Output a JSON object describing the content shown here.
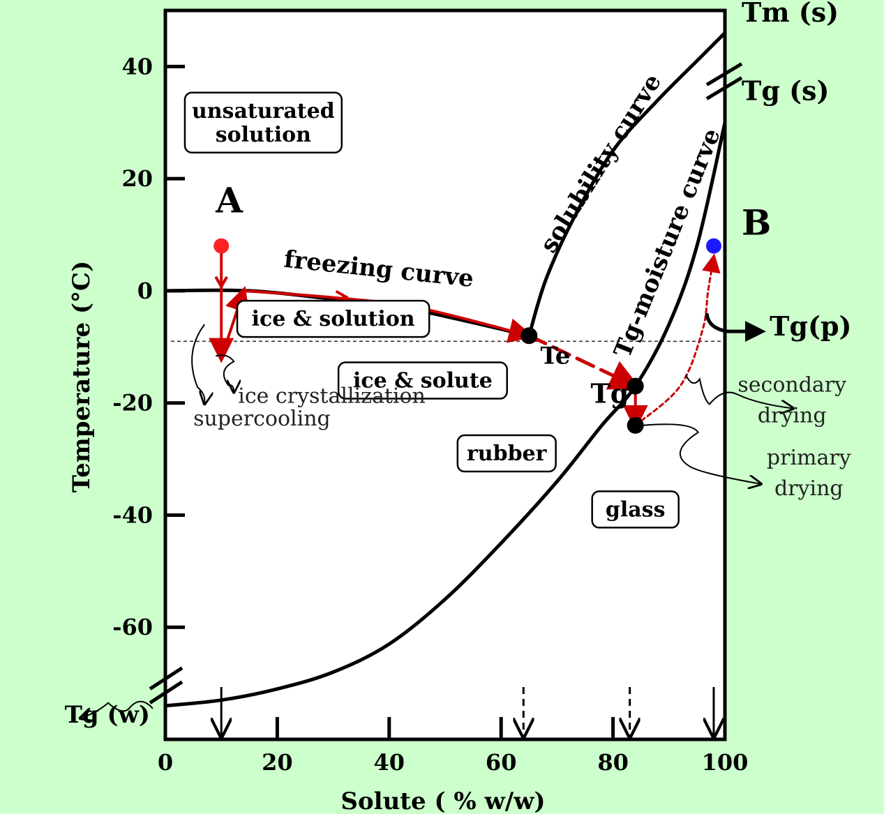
{
  "chart_data": {
    "type": "line",
    "xlabel": "Solute ( % w/w)",
    "ylabel": "Temperature (°C)",
    "xlim": [
      0,
      100
    ],
    "ylim": [
      -80,
      50
    ],
    "x_ticks": [
      0,
      20,
      40,
      60,
      80,
      100
    ],
    "y_ticks": [
      40,
      20,
      0,
      -20,
      -40,
      -60
    ],
    "series": [
      {
        "name": "freezing curve",
        "color": "#000000",
        "points": [
          [
            0,
            0
          ],
          [
            15,
            0
          ],
          [
            30,
            -1.5
          ],
          [
            45,
            -3.5
          ],
          [
            65,
            -8
          ]
        ]
      },
      {
        "name": "solubility curve",
        "color": "#000000",
        "points": [
          [
            65,
            -8
          ],
          [
            68,
            2
          ],
          [
            73,
            13
          ],
          [
            80,
            25
          ],
          [
            88,
            34
          ],
          [
            95,
            41
          ],
          [
            100,
            46
          ]
        ]
      },
      {
        "name": "Tg-moisture curve",
        "color": "#000000",
        "points": [
          [
            0,
            -74
          ],
          [
            10,
            -73
          ],
          [
            20,
            -71
          ],
          [
            30,
            -68
          ],
          [
            40,
            -63
          ],
          [
            50,
            -55
          ],
          [
            60,
            -45
          ],
          [
            70,
            -34
          ],
          [
            78,
            -24
          ],
          [
            84,
            -17
          ],
          [
            90,
            -6
          ],
          [
            95,
            8
          ],
          [
            100,
            30
          ]
        ]
      },
      {
        "name": "process path",
        "color": "#cc0000",
        "style": "solid",
        "points": [
          [
            10,
            8
          ],
          [
            10,
            -12
          ]
        ]
      },
      {
        "name": "process path",
        "color": "#cc0000",
        "style": "solid",
        "points": [
          [
            10,
            -12
          ],
          [
            14,
            0
          ]
        ]
      },
      {
        "name": "process path",
        "color": "#cc0000",
        "style": "solid",
        "points": [
          [
            14,
            0
          ],
          [
            30,
            -1.2
          ],
          [
            45,
            -3
          ],
          [
            65,
            -8
          ]
        ]
      },
      {
        "name": "process path",
        "color": "#cc0000",
        "style": "dashed",
        "points": [
          [
            65,
            -8
          ],
          [
            84,
            -17
          ]
        ]
      },
      {
        "name": "process path",
        "color": "#cc0000",
        "style": "solid",
        "points": [
          [
            84,
            -17
          ],
          [
            84,
            -24
          ]
        ]
      },
      {
        "name": "process path",
        "color": "#cc0000",
        "style": "dotted",
        "points": [
          [
            84,
            -24
          ],
          [
            92,
            -17
          ],
          [
            96,
            -7
          ],
          [
            97,
            0
          ],
          [
            98,
            6
          ]
        ]
      }
    ],
    "points": [
      {
        "label": "A",
        "x": 10,
        "y": 8,
        "color": "#ff2222"
      },
      {
        "label": "B",
        "x": 98,
        "y": 8,
        "color": "#1a1aff"
      },
      {
        "label": "Te",
        "x": 65,
        "y": -8,
        "color": "#000000"
      },
      {
        "label": "Tg'",
        "x": 84,
        "y": -17,
        "color": "#000000"
      },
      {
        "label": "",
        "x": 84,
        "y": -24,
        "color": "#000000"
      }
    ],
    "reference_line": {
      "y": -9,
      "style": "dashed",
      "x_from": 0,
      "x_to": 100
    },
    "bottom_arrows": [
      {
        "x": 10,
        "style": "solid"
      },
      {
        "x": 64,
        "style": "dashed"
      },
      {
        "x": 83,
        "style": "dashed"
      },
      {
        "x": 98,
        "style": "solid"
      }
    ],
    "region_labels": [
      {
        "text": "unsaturated\nsolution",
        "x": 17.5,
        "y": 30
      },
      {
        "text": "ice & solution",
        "x": 30,
        "y": -5
      },
      {
        "text": "ice & solute",
        "x": 46,
        "y": -16
      },
      {
        "text": "rubber",
        "x": 61,
        "y": -29
      },
      {
        "text": "glass",
        "x": 84,
        "y": -39
      }
    ],
    "curve_labels": [
      {
        "text": "freezing curve",
        "x": 38,
        "y": 2.5,
        "angle": 6
      },
      {
        "text": "solubility curve",
        "x": 79,
        "y": 22,
        "angle": -58
      },
      {
        "text": "Tg-moisture curve",
        "x": 91,
        "y": 8,
        "angle": -68
      }
    ],
    "annotations": [
      {
        "text": "A",
        "x": 9,
        "y": 14
      },
      {
        "text": "B",
        "x": 103,
        "y": 10
      },
      {
        "text": "Tm (s)",
        "x": 103,
        "y": 48
      },
      {
        "text": "Tg (s)",
        "x": 103,
        "y": 34
      },
      {
        "text": "Tg(p)",
        "x": 108,
        "y": -8
      },
      {
        "text": "Te",
        "x": 67,
        "y": -13
      },
      {
        "text": "Tg'",
        "x": 76,
        "y": -20
      },
      {
        "text": "Tg (w)",
        "x": -18,
        "y": -77
      },
      {
        "text": "ice crystallization",
        "x": 13,
        "y": -20
      },
      {
        "text": "supercooling",
        "x": 5,
        "y": -24
      },
      {
        "text": "secondary\ndrying",
        "x": 112,
        "y": -18
      },
      {
        "text": "primary\ndrying",
        "x": 115,
        "y": -31
      }
    ]
  }
}
